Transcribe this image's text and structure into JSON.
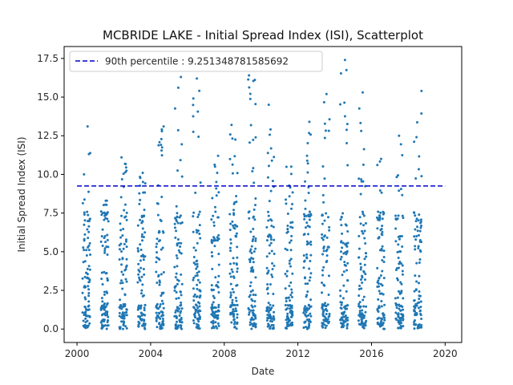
{
  "chart_data": {
    "type": "scatter",
    "title": "MCBRIDE LAKE - Initial Spread Index (ISI), Scatterplot",
    "xlabel": "Date",
    "ylabel": "Initial Spread Index (ISI)",
    "x_ticks": [
      "2000",
      "2004",
      "2008",
      "2012",
      "2016",
      "2020"
    ],
    "y_ticks": [
      "0.0",
      "2.5",
      "5.0",
      "7.5",
      "10.0",
      "12.5",
      "15.0",
      "17.5"
    ],
    "xlim": [
      1999.3,
      2020.9
    ],
    "ylim": [
      -0.87,
      18.27
    ],
    "grid": false,
    "legend_position": "top-left",
    "reference_line": {
      "label": "90th percentile : 9.251348781585692",
      "value": 9.251348781585692,
      "x_range": [
        2000.0,
        2020.0
      ],
      "style": "dashed",
      "color": "#0000cc"
    },
    "series": [
      {
        "color": "#1f77b4",
        "seasons": [
          2000,
          2001,
          2002,
          2003,
          2004,
          2005,
          2006,
          2007,
          2008,
          2009,
          2010,
          2011,
          2012,
          2013,
          2014,
          2015,
          2016,
          2017,
          2018
        ],
        "season_max": [
          13.1,
          8.3,
          11.1,
          10.1,
          13.1,
          16.3,
          16.2,
          11.2,
          13.2,
          16.4,
          14.5,
          10.5,
          13.4,
          15.2,
          17.4,
          15.3,
          11.0,
          12.5,
          15.4
        ]
      }
    ]
  }
}
